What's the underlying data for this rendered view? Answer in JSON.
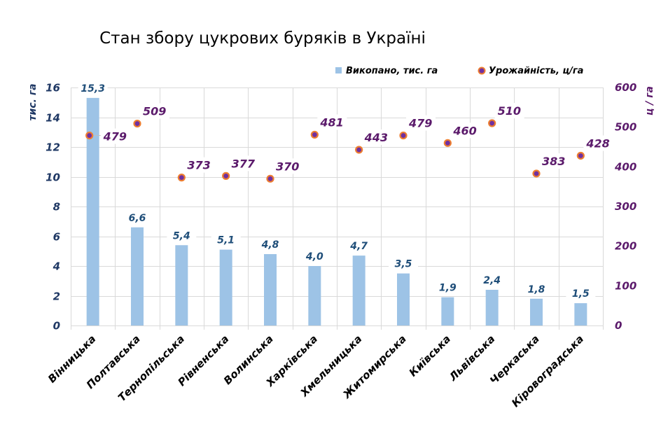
{
  "chart_data": {
    "type": "bar",
    "title": "Стан збору цукрових буряків в Україні",
    "categories": [
      "Вінницька",
      "Полтавська",
      "Тернопільська",
      "Рівненська",
      "Волинська",
      "Харківська",
      "Хмельницька",
      "Житомирська",
      "Київська",
      "Львівська",
      "Черкаська",
      "Кіровоградська"
    ],
    "series": [
      {
        "name": "Викопано, тис. га",
        "type": "bar",
        "axis": "left",
        "color": "#9dc3e6",
        "values": [
          15.3,
          6.6,
          5.4,
          5.1,
          4.8,
          4.0,
          4.7,
          3.5,
          1.9,
          2.4,
          1.8,
          1.5
        ],
        "labels": [
          "15,3",
          "6,6",
          "5,4",
          "5,1",
          "4,8",
          "4,0",
          "4,7",
          "3,5",
          "1,9",
          "2,4",
          "1,8",
          "1,5"
        ]
      },
      {
        "name": "Урожайність, ц/га",
        "type": "scatter",
        "axis": "right",
        "color": "#7030a0",
        "edge_color": "#ed7d31",
        "values": [
          479,
          509,
          373,
          377,
          370,
          481,
          443,
          479,
          460,
          510,
          383,
          428
        ],
        "labels": [
          "479",
          "509",
          "373",
          "377",
          "370",
          "481",
          "443",
          "479",
          "460",
          "510",
          "383",
          "428"
        ]
      }
    ],
    "ylabel": "тис. га",
    "y2label": "ц / га",
    "ylim": [
      0,
      16
    ],
    "y2lim": [
      0,
      600
    ],
    "yticks": [
      "0",
      "2",
      "4",
      "6",
      "8",
      "10",
      "12",
      "14",
      "16"
    ],
    "y2ticks": [
      "0",
      "100",
      "200",
      "300",
      "400",
      "500",
      "600"
    ],
    "grid": true,
    "legend_position": "top-right"
  }
}
